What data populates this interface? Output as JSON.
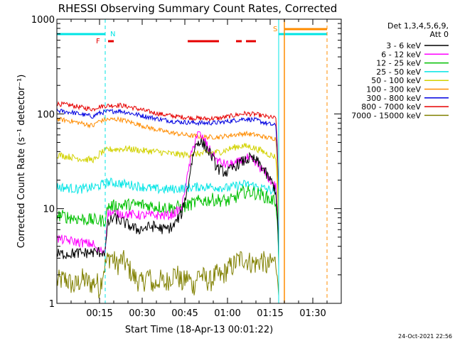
{
  "chart_data": {
    "type": "line",
    "title": "RHESSI Observing Summary Count Rates, Corrected",
    "xlabel": "Start Time (18-Apr-13 00:01:22)",
    "ylabel": "Corrected Count Rate (s⁻¹ detector⁻¹)",
    "y_scale": "log",
    "ylim": [
      1,
      1000
    ],
    "xlim_minutes": [
      0,
      100
    ],
    "x_ticks": [
      {
        "t": 15,
        "label": "00:15"
      },
      {
        "t": 30,
        "label": "00:30"
      },
      {
        "t": 45,
        "label": "00:45"
      },
      {
        "t": 60,
        "label": "01:00"
      },
      {
        "t": 75,
        "label": "01:15"
      },
      {
        "t": 90,
        "label": "01:30"
      }
    ],
    "y_ticks": [
      {
        "v": 1,
        "label": "1"
      },
      {
        "v": 10,
        "label": "10"
      },
      {
        "v": 100,
        "label": "100"
      },
      {
        "v": 1000,
        "label": "1000"
      }
    ],
    "legend": {
      "placement": "right",
      "header": [
        "Det 1,3,4,5,6,9,",
        "Att 0"
      ]
    },
    "series": [
      {
        "name": "3 - 6 keV",
        "color": "#000000",
        "points": [
          [
            0,
            3.3
          ],
          [
            9,
            3.4
          ],
          [
            17,
            3.5
          ],
          [
            18,
            7
          ],
          [
            20,
            8
          ],
          [
            24,
            7
          ],
          [
            28,
            6
          ],
          [
            34,
            6.5
          ],
          [
            38,
            6
          ],
          [
            41,
            6.5
          ],
          [
            44,
            9
          ],
          [
            46,
            16
          ],
          [
            47,
            26
          ],
          [
            48,
            38
          ],
          [
            49,
            48
          ],
          [
            50,
            52
          ],
          [
            52,
            46
          ],
          [
            54,
            38
          ],
          [
            56,
            28
          ],
          [
            57,
            26
          ],
          [
            58,
            25
          ],
          [
            60,
            24
          ],
          [
            62,
            27
          ],
          [
            64,
            30
          ],
          [
            66,
            32
          ],
          [
            68,
            34
          ],
          [
            70,
            32
          ],
          [
            72,
            28
          ],
          [
            74,
            22
          ],
          [
            76,
            18
          ],
          [
            77,
            15
          ],
          [
            78,
            3.2
          ]
        ]
      },
      {
        "name": "6 - 12 keV",
        "color": "#ff00ff",
        "points": [
          [
            0,
            4.8
          ],
          [
            8,
            4.4
          ],
          [
            13,
            4.2
          ],
          [
            14,
            3.6
          ],
          [
            17,
            3.6
          ],
          [
            18,
            9
          ],
          [
            30,
            8.5
          ],
          [
            40,
            8.5
          ],
          [
            44,
            10
          ],
          [
            46,
            22
          ],
          [
            48,
            45
          ],
          [
            49,
            58
          ],
          [
            50,
            62
          ],
          [
            51,
            56
          ],
          [
            52,
            52
          ],
          [
            54,
            40
          ],
          [
            56,
            33
          ],
          [
            58,
            30
          ],
          [
            60,
            29
          ],
          [
            63,
            30
          ],
          [
            65,
            32
          ],
          [
            67,
            34
          ],
          [
            69,
            31
          ],
          [
            71,
            28
          ],
          [
            73,
            24
          ],
          [
            75,
            20
          ],
          [
            77,
            17
          ],
          [
            78,
            3.6
          ]
        ]
      },
      {
        "name": "12 - 25 keV",
        "color": "#00c000",
        "points": [
          [
            0,
            8.5
          ],
          [
            8,
            7.8
          ],
          [
            14,
            7.5
          ],
          [
            17,
            7.5
          ],
          [
            18,
            10.5
          ],
          [
            25,
            11
          ],
          [
            30,
            11
          ],
          [
            35,
            10.5
          ],
          [
            40,
            10.2
          ],
          [
            45,
            10.5
          ],
          [
            50,
            12
          ],
          [
            55,
            12.5
          ],
          [
            60,
            12
          ],
          [
            62,
            12.5
          ],
          [
            64,
            14
          ],
          [
            66,
            15
          ],
          [
            68,
            15
          ],
          [
            70,
            14.5
          ],
          [
            72,
            14
          ],
          [
            75,
            12.5
          ],
          [
            77,
            12
          ],
          [
            78,
            3
          ]
        ]
      },
      {
        "name": "25 - 50 keV",
        "color": "#00e5e5",
        "points": [
          [
            0,
            17
          ],
          [
            8,
            16
          ],
          [
            14,
            17
          ],
          [
            18,
            19
          ],
          [
            25,
            18
          ],
          [
            30,
            17
          ],
          [
            35,
            16
          ],
          [
            40,
            16
          ],
          [
            45,
            16.5
          ],
          [
            50,
            17
          ],
          [
            55,
            17
          ],
          [
            60,
            16.5
          ],
          [
            62,
            17
          ],
          [
            65,
            18
          ],
          [
            68,
            18
          ],
          [
            70,
            17
          ],
          [
            74,
            16
          ],
          [
            77,
            15
          ],
          [
            78,
            3
          ]
        ]
      },
      {
        "name": "50 - 100 keV",
        "color": "#d2d200",
        "points": [
          [
            0,
            37
          ],
          [
            5,
            35
          ],
          [
            10,
            33
          ],
          [
            14,
            33
          ],
          [
            15,
            38
          ],
          [
            18,
            42
          ],
          [
            25,
            43
          ],
          [
            30,
            41
          ],
          [
            35,
            40
          ],
          [
            40,
            38
          ],
          [
            45,
            37
          ],
          [
            50,
            38
          ],
          [
            55,
            39
          ],
          [
            58,
            40
          ],
          [
            62,
            44
          ],
          [
            65,
            46
          ],
          [
            68,
            45
          ],
          [
            71,
            42
          ],
          [
            74,
            38
          ],
          [
            76,
            36
          ],
          [
            77,
            35
          ],
          [
            78,
            2.8
          ]
        ]
      },
      {
        "name": "100 - 300 keV",
        "color": "#ff8c00",
        "points": [
          [
            0,
            88
          ],
          [
            5,
            84
          ],
          [
            10,
            78
          ],
          [
            13,
            75
          ],
          [
            14,
            82
          ],
          [
            17,
            87
          ],
          [
            22,
            88
          ],
          [
            27,
            80
          ],
          [
            32,
            72
          ],
          [
            37,
            66
          ],
          [
            42,
            62
          ],
          [
            47,
            59
          ],
          [
            52,
            57
          ],
          [
            57,
            57
          ],
          [
            62,
            60
          ],
          [
            66,
            62
          ],
          [
            70,
            60
          ],
          [
            74,
            56
          ],
          [
            77,
            55
          ],
          [
            78,
            2.6
          ]
        ]
      },
      {
        "name": "300 - 800 keV",
        "color": "#0000e0",
        "points": [
          [
            0,
            108
          ],
          [
            5,
            104
          ],
          [
            10,
            97
          ],
          [
            13,
            94
          ],
          [
            14,
            100
          ],
          [
            17,
            105
          ],
          [
            22,
            108
          ],
          [
            27,
            100
          ],
          [
            32,
            93
          ],
          [
            37,
            87
          ],
          [
            42,
            83
          ],
          [
            47,
            81
          ],
          [
            52,
            80
          ],
          [
            57,
            81
          ],
          [
            62,
            85
          ],
          [
            66,
            89
          ],
          [
            70,
            86
          ],
          [
            74,
            79
          ],
          [
            77,
            75
          ],
          [
            78,
            2.5
          ]
        ]
      },
      {
        "name": "800 - 7000 keV",
        "color": "#e60000",
        "points": [
          [
            0,
            128
          ],
          [
            5,
            123
          ],
          [
            10,
            115
          ],
          [
            13,
            112
          ],
          [
            14,
            118
          ],
          [
            17,
            122
          ],
          [
            22,
            124
          ],
          [
            27,
            116
          ],
          [
            32,
            106
          ],
          [
            37,
            99
          ],
          [
            42,
            94
          ],
          [
            47,
            91
          ],
          [
            52,
            89
          ],
          [
            57,
            90
          ],
          [
            62,
            96
          ],
          [
            66,
            101
          ],
          [
            70,
            99
          ],
          [
            74,
            93
          ],
          [
            77,
            90
          ],
          [
            78,
            2.4
          ]
        ]
      },
      {
        "name": "7000 - 15000 keV",
        "color": "#808000",
        "points": [
          [
            0,
            1.7
          ],
          [
            3,
            1.8
          ],
          [
            6,
            1.5
          ],
          [
            9,
            1.8
          ],
          [
            12,
            1.6
          ],
          [
            14,
            1.7
          ],
          [
            15,
            1.4
          ],
          [
            17,
            2.6
          ],
          [
            19,
            3.2
          ],
          [
            21,
            2.5
          ],
          [
            23,
            2.9
          ],
          [
            25,
            2.4
          ],
          [
            27,
            1.9
          ],
          [
            30,
            1.6
          ],
          [
            32,
            2
          ],
          [
            34,
            1.5
          ],
          [
            36,
            1.8
          ],
          [
            38,
            1.6
          ],
          [
            40,
            1.9
          ],
          [
            42,
            2.1
          ],
          [
            44,
            1.6
          ],
          [
            46,
            1.9
          ],
          [
            48,
            1.5
          ],
          [
            50,
            2.1
          ],
          [
            52,
            1.8
          ],
          [
            54,
            1.7
          ],
          [
            56,
            2
          ],
          [
            58,
            1.9
          ],
          [
            60,
            2.3
          ],
          [
            62,
            2.5
          ],
          [
            64,
            2.9
          ],
          [
            66,
            3
          ],
          [
            68,
            2.7
          ],
          [
            70,
            2.6
          ],
          [
            72,
            2.9
          ],
          [
            74,
            2.4
          ],
          [
            76,
            2.8
          ],
          [
            77,
            2.7
          ],
          [
            78,
            1.2
          ]
        ]
      }
    ],
    "annotations": [
      {
        "label": "N",
        "t": 18,
        "color": "#00e5e5"
      },
      {
        "label": "S",
        "t": 78,
        "color": "#ff8c00"
      },
      {
        "label": "F",
        "t": 16,
        "color": "#e60000"
      }
    ],
    "flare_segments": [
      [
        18,
        20
      ],
      [
        46,
        57
      ],
      [
        63,
        65
      ],
      [
        66.5,
        70
      ]
    ],
    "night_segments": [
      [
        0,
        17
      ],
      [
        78,
        95
      ]
    ],
    "saa_segments": [
      [
        80,
        95
      ]
    ],
    "markers": {
      "cyan_solid_t": [
        78
      ],
      "cyan_dashed_t": [
        17,
        95
      ],
      "orange_solid_t": [
        80
      ],
      "orange_dashed_t": [
        95
      ]
    },
    "grid": false
  },
  "footer": {
    "timestamp": "24-Oct-2021 22:56"
  }
}
